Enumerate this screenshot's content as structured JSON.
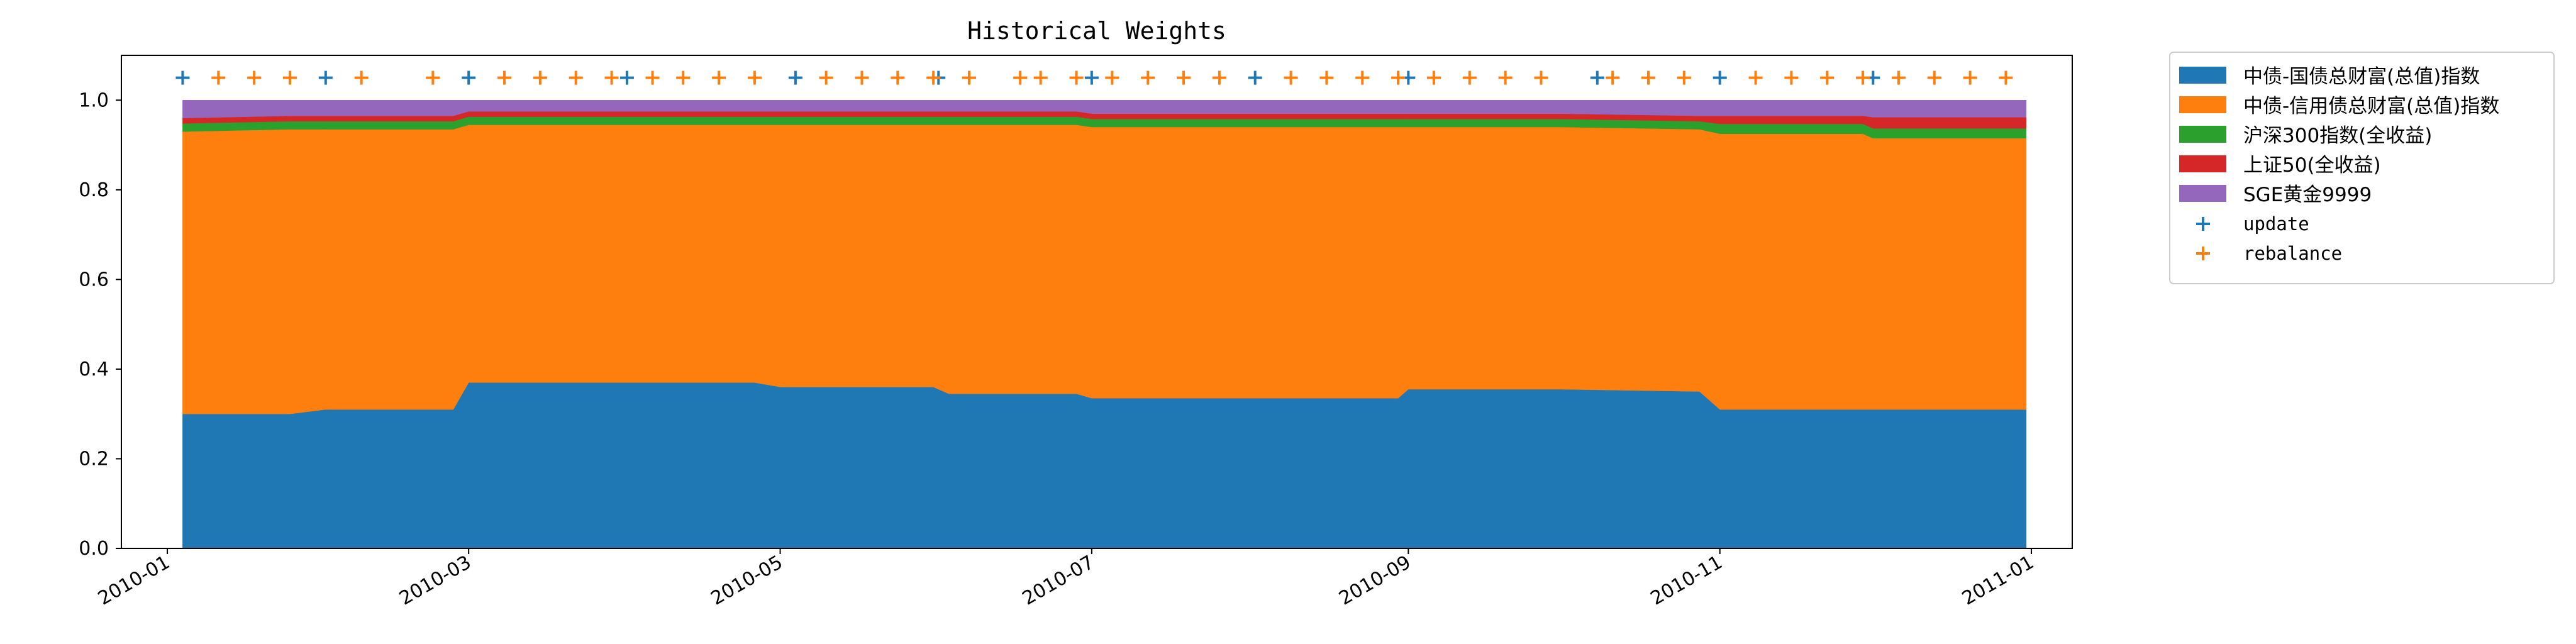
{
  "chart_data": {
    "type": "area",
    "title": "Historical Weights",
    "xlabel": "",
    "ylabel": "",
    "xlim": [
      "2009-12-23",
      "2011-01-09"
    ],
    "ylim": [
      0,
      1.1
    ],
    "x_ticks": [
      "2010-01",
      "2010-03",
      "2010-05",
      "2010-07",
      "2010-09",
      "2010-11",
      "2011-01"
    ],
    "y_ticks": [
      "0.0",
      "0.2",
      "0.4",
      "0.6",
      "0.8",
      "1.0"
    ],
    "grid": false,
    "legend_position": "outside-top-right",
    "x": [
      "2010-01-04",
      "2010-01-25",
      "2010-02-01",
      "2010-02-26",
      "2010-03-01",
      "2010-04-26",
      "2010-05-01",
      "2010-05-31",
      "2010-06-03",
      "2010-06-28",
      "2010-07-01",
      "2010-08-30",
      "2010-09-01",
      "2010-10-01",
      "2010-10-28",
      "2010-11-01",
      "2010-11-15",
      "2010-11-29",
      "2010-12-01",
      "2010-12-31"
    ],
    "series": [
      {
        "name": "中债-国债总财富(总值)指数",
        "color": "#1f77b4",
        "values": [
          0.3,
          0.3,
          0.31,
          0.31,
          0.37,
          0.37,
          0.36,
          0.36,
          0.345,
          0.345,
          0.335,
          0.335,
          0.355,
          0.355,
          0.35,
          0.31,
          0.31,
          0.31,
          0.31,
          0.31
        ]
      },
      {
        "name": "中债-信用债总财富(总值)指数",
        "color": "#ff7f0e",
        "values": [
          0.63,
          0.635,
          0.625,
          0.625,
          0.575,
          0.575,
          0.585,
          0.585,
          0.6,
          0.6,
          0.605,
          0.605,
          0.585,
          0.585,
          0.585,
          0.615,
          0.615,
          0.615,
          0.605,
          0.605
        ]
      },
      {
        "name": "沪深300指数(全收益)",
        "color": "#2ca02c",
        "values": [
          0.018,
          0.018,
          0.018,
          0.018,
          0.018,
          0.018,
          0.018,
          0.018,
          0.018,
          0.018,
          0.018,
          0.018,
          0.018,
          0.018,
          0.018,
          0.022,
          0.022,
          0.022,
          0.022,
          0.022
        ]
      },
      {
        "name": "上证50(全收益)",
        "color": "#d62728",
        "values": [
          0.012,
          0.012,
          0.012,
          0.012,
          0.012,
          0.012,
          0.012,
          0.012,
          0.012,
          0.012,
          0.012,
          0.012,
          0.012,
          0.012,
          0.012,
          0.018,
          0.018,
          0.018,
          0.025,
          0.025
        ]
      },
      {
        "name": "SGE黄金9999",
        "color": "#9467bd",
        "values": [
          0.04,
          0.035,
          0.035,
          0.035,
          0.025,
          0.025,
          0.025,
          0.025,
          0.025,
          0.025,
          0.03,
          0.03,
          0.03,
          0.03,
          0.035,
          0.035,
          0.035,
          0.035,
          0.038,
          0.038
        ]
      }
    ],
    "markers": [
      {
        "name": "update",
        "color": "#1f77b4",
        "y": 1.05,
        "dates": [
          "2010-01-04",
          "2010-02-01",
          "2010-03-01",
          "2010-04-01",
          "2010-05-04",
          "2010-06-01",
          "2010-07-01",
          "2010-08-02",
          "2010-09-01",
          "2010-10-08",
          "2010-11-01",
          "2010-12-01"
        ]
      },
      {
        "name": "rebalance",
        "color": "#ff7f0e",
        "y": 1.05,
        "dates": [
          "2010-01-11",
          "2010-01-18",
          "2010-01-25",
          "2010-02-08",
          "2010-02-22",
          "2010-03-08",
          "2010-03-15",
          "2010-03-22",
          "2010-03-29",
          "2010-04-06",
          "2010-04-12",
          "2010-04-19",
          "2010-04-26",
          "2010-05-10",
          "2010-05-17",
          "2010-05-24",
          "2010-05-31",
          "2010-06-07",
          "2010-06-17",
          "2010-06-21",
          "2010-06-28",
          "2010-07-05",
          "2010-07-12",
          "2010-07-19",
          "2010-07-26",
          "2010-08-09",
          "2010-08-16",
          "2010-08-23",
          "2010-08-30",
          "2010-09-06",
          "2010-09-13",
          "2010-09-20",
          "2010-09-27",
          "2010-10-11",
          "2010-10-18",
          "2010-10-25",
          "2010-11-08",
          "2010-11-15",
          "2010-11-22",
          "2010-11-29",
          "2010-12-06",
          "2010-12-13",
          "2010-12-20",
          "2010-12-27"
        ]
      }
    ]
  }
}
